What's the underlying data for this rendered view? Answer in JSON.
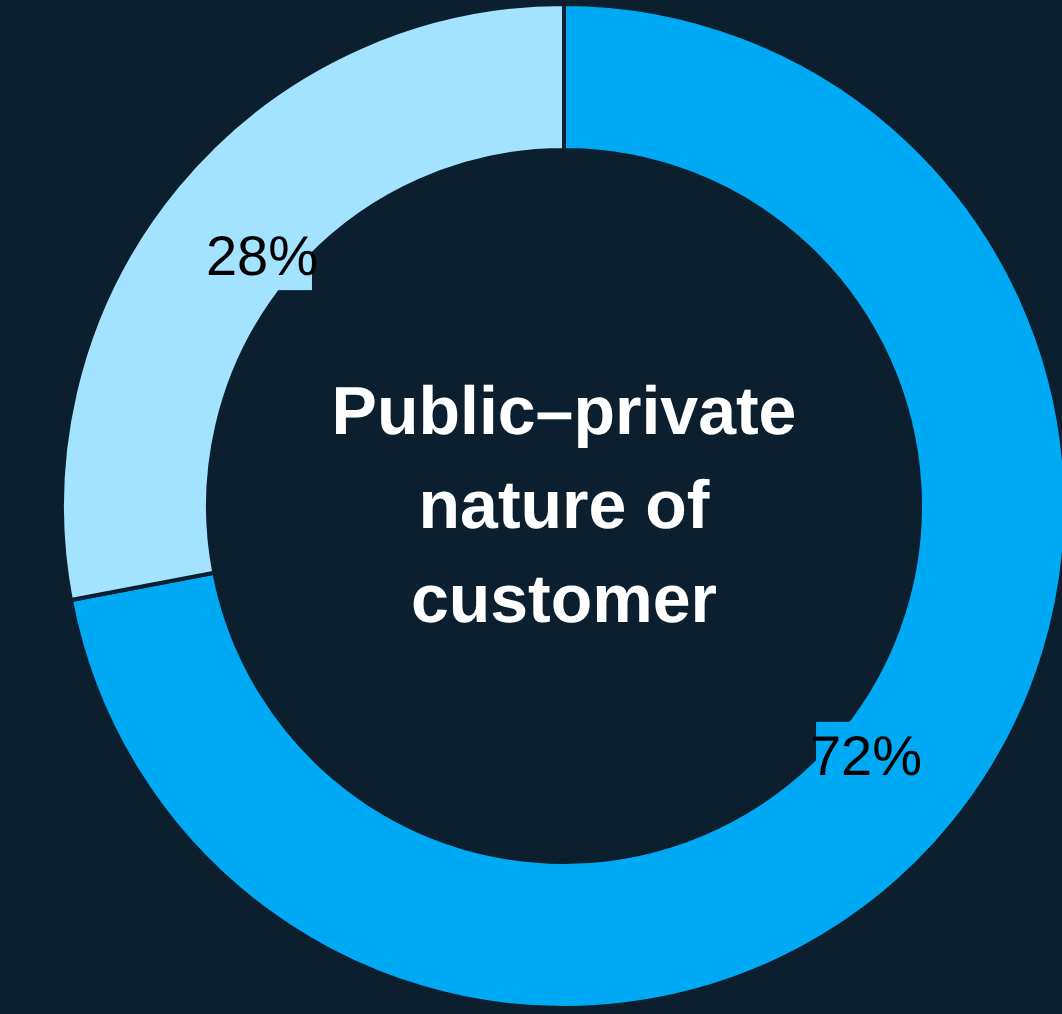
{
  "chart_data": {
    "type": "donut",
    "title": "Public–private nature of customer",
    "categories": [
      null,
      null
    ],
    "values": [
      72,
      28
    ],
    "value_labels": [
      "72%",
      "28%"
    ],
    "colors": [
      "#00a9f4",
      "#a3e3ff"
    ]
  }
}
